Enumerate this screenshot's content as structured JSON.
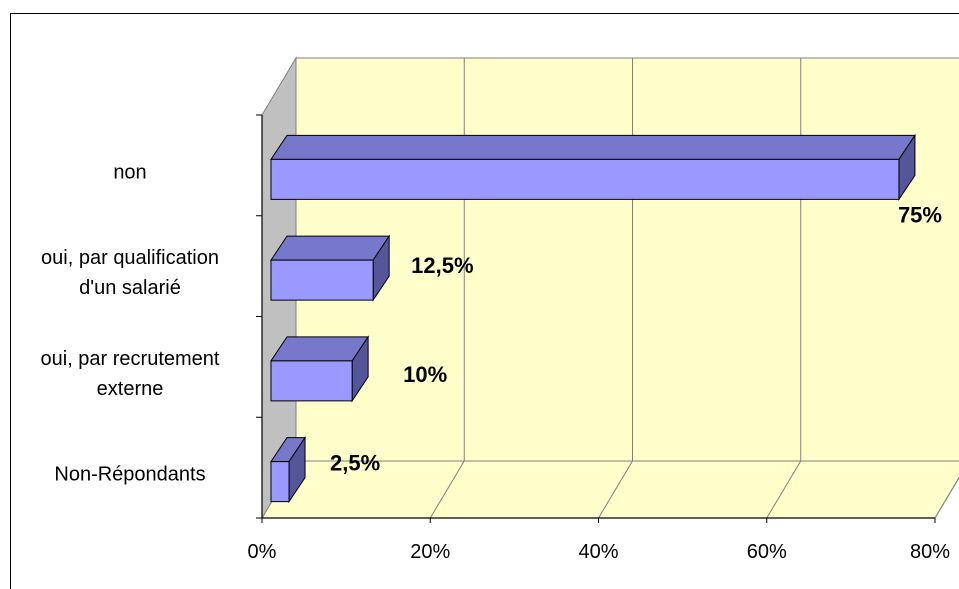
{
  "chart_data": {
    "type": "bar",
    "orientation": "horizontal",
    "style": "3d",
    "categories": [
      "non",
      "oui, par qualification d'un salarié",
      "oui, par recrutement externe",
      "Non-Répondants"
    ],
    "category_lines": [
      [
        "non"
      ],
      [
        "oui, par qualification",
        "d'un salarié"
      ],
      [
        "oui, par recrutement",
        "externe"
      ],
      [
        "Non-Répondants"
      ]
    ],
    "values": [
      75,
      12.5,
      10,
      2.5
    ],
    "data_labels": [
      "75%",
      "12,5%",
      "10%",
      "2,5%"
    ],
    "xlim": [
      0,
      80
    ],
    "xticks": [
      0,
      20,
      40,
      60,
      80
    ],
    "xtick_labels": [
      "0%",
      "20%",
      "40%",
      "60%",
      "80%"
    ],
    "grid": true,
    "colors": {
      "bar_front": "#9999ff",
      "bar_top": "#7777cc",
      "bar_side": "#555599",
      "back_wall": "#ffffcc",
      "side_wall": "#c0c0c0",
      "floor": "#ffffcc"
    }
  }
}
